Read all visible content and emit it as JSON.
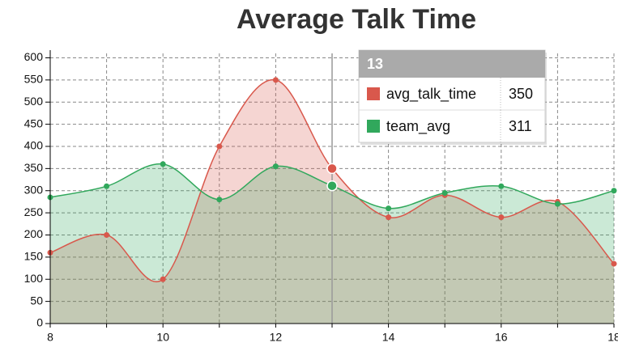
{
  "chart_data": {
    "type": "area",
    "title": "Average Talk Time",
    "x": [
      8,
      9,
      10,
      11,
      12,
      13,
      14,
      15,
      16,
      17,
      18
    ],
    "series": [
      {
        "name": "avg_talk_time",
        "color": "#d9584c",
        "values": [
          160,
          200,
          100,
          400,
          550,
          350,
          240,
          290,
          240,
          275,
          135
        ]
      },
      {
        "name": "team_avg",
        "color": "#31a85c",
        "values": [
          285,
          310,
          360,
          280,
          355,
          311,
          260,
          295,
          310,
          270,
          300
        ]
      }
    ],
    "xlim": [
      8,
      18
    ],
    "xticks": [
      8,
      10,
      12,
      14,
      16,
      18
    ],
    "ylim": [
      0,
      610
    ],
    "yticks": [
      0,
      50,
      100,
      150,
      200,
      250,
      300,
      350,
      400,
      450,
      500,
      550,
      600
    ],
    "grid": true,
    "tooltip": {
      "index": 5
    }
  }
}
